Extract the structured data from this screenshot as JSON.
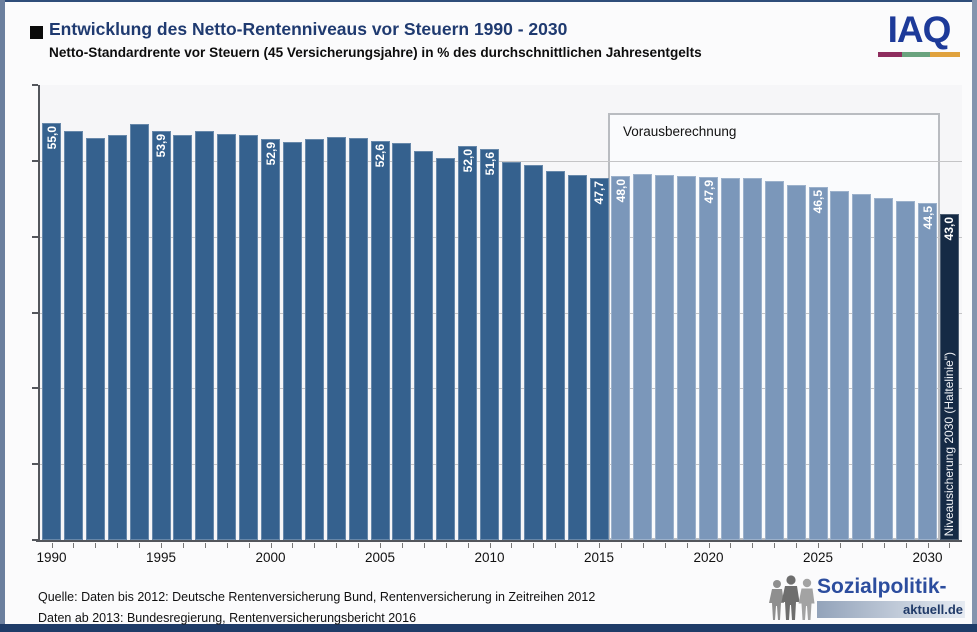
{
  "header": {
    "title": "Entwicklung des Netto-Rentenniveaus vor Steuern 1990 - 2030",
    "subtitle": "Netto-Standardrente vor Steuern (45 Versicherungsjahre) in % des durchschnittlichen Jahresentgelts"
  },
  "iaq_logo": {
    "text": "IAQ",
    "text_color": "#1d3a99",
    "underline_colors": [
      "#8e2d5e",
      "#6aa37e",
      "#e0a23e"
    ]
  },
  "chart_data": {
    "type": "bar",
    "title": "Entwicklung des Netto-Rentenniveaus vor Steuern 1990 - 2030",
    "ylabel": "Netto-Standardrente vor Steuern in % des durchschnittlichen Jahresentgelts",
    "ylim": [
      0,
      60
    ],
    "yticks": [
      0,
      10,
      20,
      30,
      40,
      50,
      60
    ],
    "xtick_years": [
      1990,
      1995,
      2000,
      2005,
      2010,
      2015,
      2020,
      2025,
      2030
    ],
    "grid": true,
    "legend_position": "none",
    "annotation": "Vorausberechnung",
    "colors": {
      "history": "#35618e",
      "forecast": "#7b97ba",
      "haltelinie": "#152a45"
    },
    "bars": [
      {
        "year": "1990",
        "value": 55.0,
        "label": "55,0",
        "segment": "history"
      },
      {
        "year": "1991",
        "value": 53.9,
        "segment": "history"
      },
      {
        "year": "1992",
        "value": 53.0,
        "segment": "history"
      },
      {
        "year": "1993",
        "value": 53.4,
        "segment": "history"
      },
      {
        "year": "1994",
        "value": 54.8,
        "segment": "history"
      },
      {
        "year": "1995",
        "value": 53.9,
        "label": "53,9",
        "segment": "history"
      },
      {
        "year": "1996",
        "value": 53.4,
        "segment": "history"
      },
      {
        "year": "1997",
        "value": 53.9,
        "segment": "history"
      },
      {
        "year": "1998",
        "value": 53.6,
        "segment": "history"
      },
      {
        "year": "1999",
        "value": 53.4,
        "segment": "history"
      },
      {
        "year": "2000",
        "value": 52.9,
        "label": "52,9",
        "segment": "history"
      },
      {
        "year": "2001",
        "value": 52.5,
        "segment": "history"
      },
      {
        "year": "2002",
        "value": 52.9,
        "segment": "history"
      },
      {
        "year": "2003",
        "value": 53.2,
        "segment": "history"
      },
      {
        "year": "2004",
        "value": 53.0,
        "segment": "history"
      },
      {
        "year": "2005",
        "value": 52.6,
        "label": "52,6",
        "segment": "history"
      },
      {
        "year": "2006",
        "value": 52.3,
        "segment": "history"
      },
      {
        "year": "2007",
        "value": 51.3,
        "segment": "history"
      },
      {
        "year": "2008",
        "value": 50.4,
        "segment": "history"
      },
      {
        "year": "2009",
        "value": 52.0,
        "label": "52,0",
        "segment": "history"
      },
      {
        "year": "2010",
        "value": 51.6,
        "label": "51,6",
        "segment": "history"
      },
      {
        "year": "2011",
        "value": 49.9,
        "segment": "history"
      },
      {
        "year": "2012",
        "value": 49.4,
        "segment": "history"
      },
      {
        "year": "2013",
        "value": 48.7,
        "segment": "history"
      },
      {
        "year": "2014",
        "value": 48.1,
        "segment": "history"
      },
      {
        "year": "2015",
        "value": 47.7,
        "label": "47,7",
        "segment": "history"
      },
      {
        "year": "2016",
        "value": 48.0,
        "label": "48,0",
        "segment": "forecast"
      },
      {
        "year": "2017",
        "value": 48.2,
        "segment": "forecast"
      },
      {
        "year": "2018",
        "value": 48.1,
        "segment": "forecast"
      },
      {
        "year": "2019",
        "value": 48.0,
        "segment": "forecast"
      },
      {
        "year": "2020",
        "value": 47.9,
        "label": "47,9",
        "segment": "forecast"
      },
      {
        "year": "2021",
        "value": 47.8,
        "segment": "forecast"
      },
      {
        "year": "2022",
        "value": 47.7,
        "segment": "forecast"
      },
      {
        "year": "2023",
        "value": 47.4,
        "segment": "forecast"
      },
      {
        "year": "2024",
        "value": 46.8,
        "segment": "forecast"
      },
      {
        "year": "2025",
        "value": 46.5,
        "label": "46,5",
        "segment": "forecast"
      },
      {
        "year": "2026",
        "value": 46.0,
        "segment": "forecast"
      },
      {
        "year": "2027",
        "value": 45.6,
        "segment": "forecast"
      },
      {
        "year": "2028",
        "value": 45.1,
        "segment": "forecast"
      },
      {
        "year": "2029",
        "value": 44.7,
        "segment": "forecast"
      },
      {
        "year": "2030",
        "value": 44.5,
        "label": "44,5",
        "segment": "forecast"
      },
      {
        "year": "",
        "value": 43.0,
        "label": "43,0",
        "segment": "haltelinie",
        "caption": "Niveausicherung 2030 (Haltelinie\")"
      }
    ]
  },
  "footer": {
    "source_line1": "Quelle: Daten bis 2012: Deutsche Rentenversicherung Bund, Rentenversicherung in Zeitreihen 2012",
    "source_line2": "Daten ab 2013: Bundesregierung, Rentenversicherungsbericht 2016"
  },
  "spa_logo": {
    "line1": "Sozialpolitik-",
    "line2": "aktuell.de"
  }
}
